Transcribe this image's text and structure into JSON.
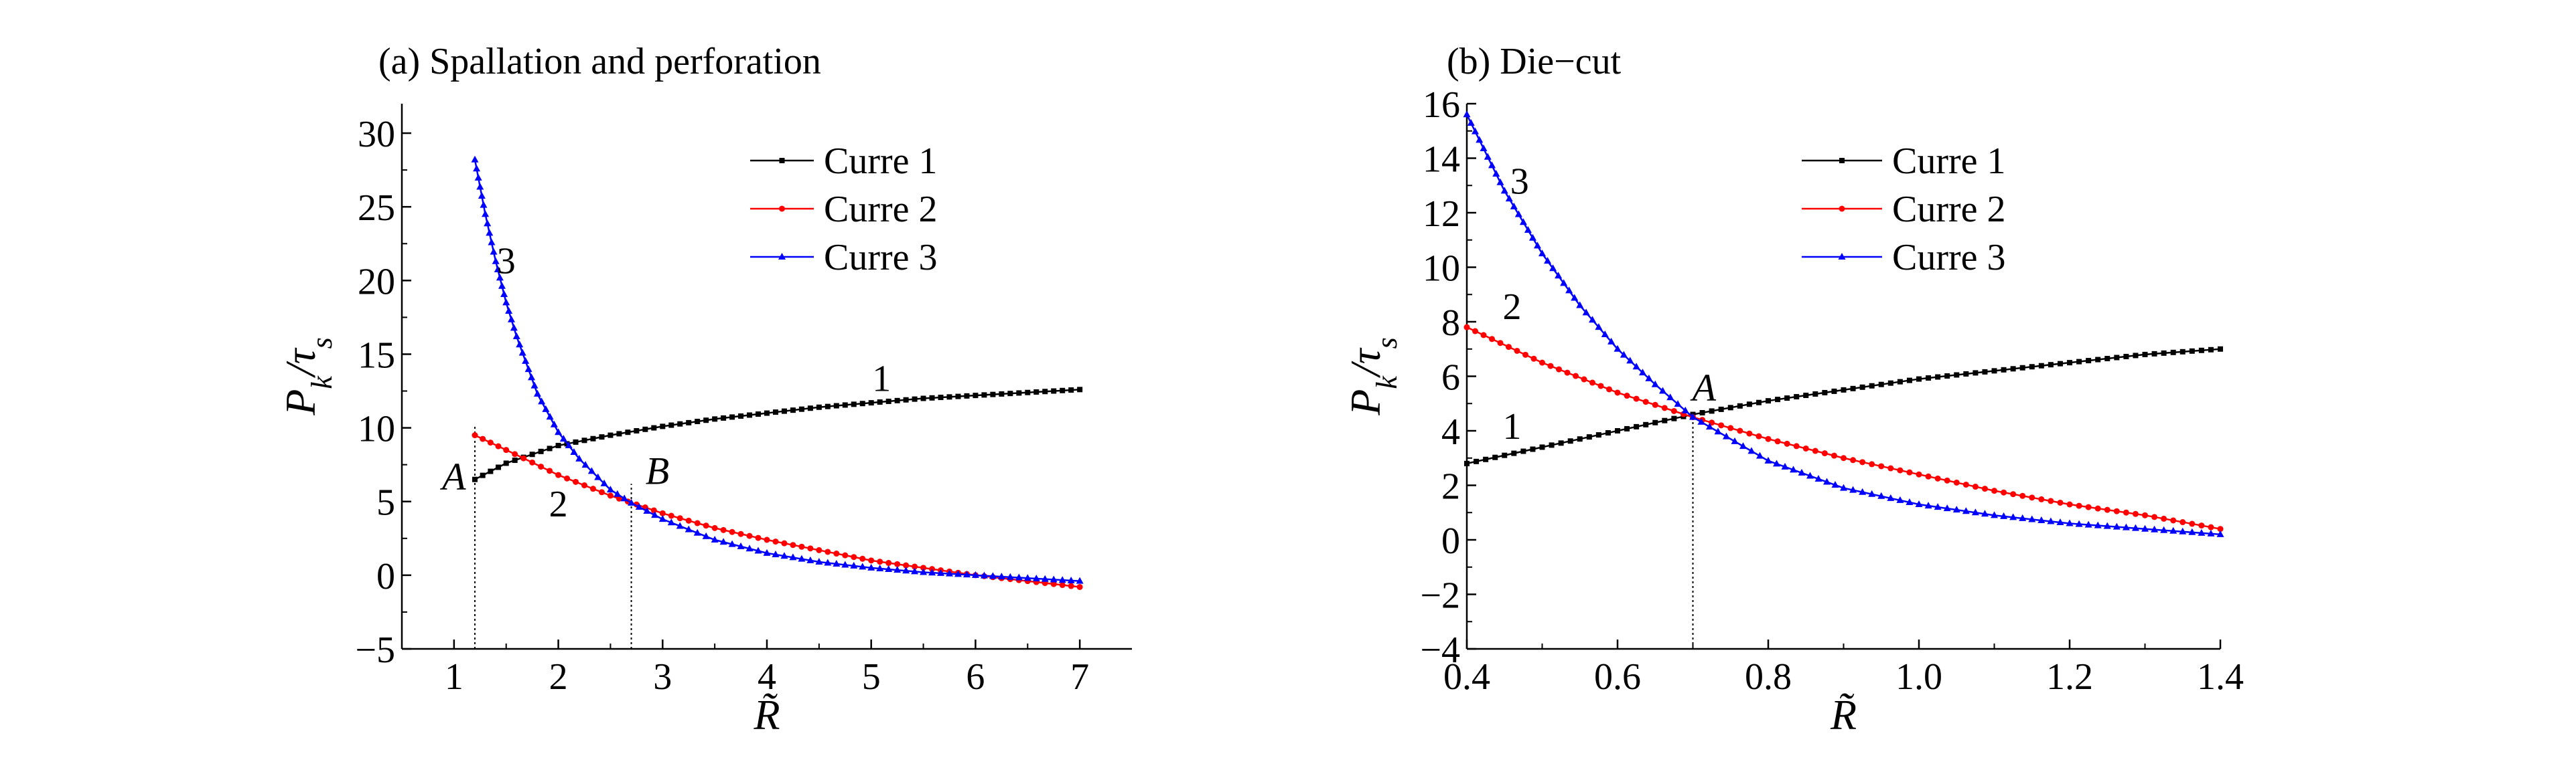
{
  "chart_data": [
    {
      "type": "line",
      "title": "(a) Spallation and perforation",
      "xlabel": "R̃",
      "ylabel_main": "P",
      "ylabel_sub1": "k",
      "ylabel_sep": "/τ",
      "ylabel_sub2": "s",
      "xlim": [
        0.5,
        7.5
      ],
      "ylim": [
        -5,
        32
      ],
      "xticks": [
        1,
        2,
        3,
        4,
        5,
        6,
        7
      ],
      "yticks": [
        -5,
        0,
        5,
        10,
        15,
        20,
        25,
        30
      ],
      "legend_position": "top-right",
      "series": [
        {
          "name": "Curre 1",
          "color": "#000000",
          "marker": "square",
          "x": [
            1.2,
            1.5,
            2.0,
            2.5,
            3.0,
            3.5,
            4.0,
            4.5,
            5.0,
            5.5,
            6.0,
            6.5,
            7.0
          ],
          "y": [
            6.5,
            7.6,
            8.8,
            9.5,
            10.1,
            10.6,
            11.0,
            11.4,
            11.7,
            12.0,
            12.2,
            12.4,
            12.6
          ]
        },
        {
          "name": "Curre 2",
          "color": "#ff0000",
          "marker": "circle",
          "x": [
            1.2,
            1.5,
            2.0,
            2.5,
            3.0,
            3.5,
            4.0,
            4.5,
            5.0,
            5.5,
            6.0,
            6.5,
            7.0
          ],
          "y": [
            9.5,
            8.5,
            6.8,
            5.4,
            4.2,
            3.2,
            2.4,
            1.7,
            1.0,
            0.5,
            0.0,
            -0.4,
            -0.8
          ]
        },
        {
          "name": "Curre 3",
          "color": "#0000ff",
          "marker": "triangle",
          "x": [
            1.2,
            1.3,
            1.4,
            1.5,
            1.6,
            1.8,
            2.0,
            2.2,
            2.5,
            2.7,
            3.0,
            3.5,
            4.0,
            4.5,
            5.0,
            5.5,
            6.0,
            6.5,
            7.0
          ],
          "y": [
            28.2,
            24.5,
            21.3,
            18.5,
            16.2,
            12.3,
            9.7,
            7.9,
            5.8,
            4.9,
            3.8,
            2.4,
            1.5,
            0.9,
            0.5,
            0.2,
            0.0,
            -0.2,
            -0.4
          ]
        }
      ],
      "annotations": [
        {
          "text": "1",
          "x": 5.1,
          "y": 12.5
        },
        {
          "text": "2",
          "x": 2.0,
          "y": 4.0
        },
        {
          "text": "3",
          "x": 1.5,
          "y": 20.5
        },
        {
          "text": "A",
          "x": 1.0,
          "y": 5.8
        },
        {
          "text": "B",
          "x": 2.95,
          "y": 6.2
        }
      ],
      "reference_lines": [
        {
          "x": 1.2,
          "y_from": -5,
          "y_to": 10.2
        },
        {
          "x": 2.7,
          "y_from": -5,
          "y_to": 6.2
        }
      ]
    },
    {
      "type": "line",
      "title": "(b) Die−cut",
      "xlabel": "R̃",
      "ylabel_main": "P",
      "ylabel_sub1": "k",
      "ylabel_sep": "/τ",
      "ylabel_sub2": "s",
      "xlim": [
        0.4,
        1.4
      ],
      "ylim": [
        -4,
        16
      ],
      "xticks": [
        "0.4",
        "0.6",
        "0.8",
        "1.0",
        "1.2",
        "1.4"
      ],
      "yticks": [
        -4,
        -2,
        0,
        2,
        4,
        6,
        8,
        10,
        12,
        14,
        16
      ],
      "legend_position": "top-right",
      "series": [
        {
          "name": "Curre 1",
          "color": "#000000",
          "marker": "square",
          "x": [
            0.4,
            0.5,
            0.6,
            0.7,
            0.8,
            0.9,
            1.0,
            1.1,
            1.2,
            1.3,
            1.4
          ],
          "y": [
            2.8,
            3.4,
            4.0,
            4.6,
            5.1,
            5.5,
            5.9,
            6.2,
            6.5,
            6.8,
            7.0
          ]
        },
        {
          "name": "Curre 2",
          "color": "#ff0000",
          "marker": "circle",
          "x": [
            0.4,
            0.5,
            0.6,
            0.7,
            0.8,
            0.9,
            1.0,
            1.1,
            1.2,
            1.3,
            1.4
          ],
          "y": [
            7.8,
            6.5,
            5.4,
            4.5,
            3.7,
            3.0,
            2.4,
            1.8,
            1.3,
            0.9,
            0.4
          ]
        },
        {
          "name": "Curre 3",
          "color": "#0000ff",
          "marker": "triangle",
          "x": [
            0.4,
            0.45,
            0.5,
            0.55,
            0.6,
            0.65,
            0.7,
            0.8,
            0.9,
            1.0,
            1.1,
            1.2,
            1.3,
            1.4
          ],
          "y": [
            15.6,
            12.8,
            10.5,
            8.6,
            7.0,
            5.7,
            4.5,
            2.9,
            1.9,
            1.3,
            0.9,
            0.6,
            0.4,
            0.2
          ]
        }
      ],
      "annotations": [
        {
          "text": "1",
          "x": 0.46,
          "y": 3.7
        },
        {
          "text": "2",
          "x": 0.46,
          "y": 8.1
        },
        {
          "text": "3",
          "x": 0.47,
          "y": 12.7
        },
        {
          "text": "A",
          "x": 0.715,
          "y": 5.1
        }
      ],
      "reference_lines": [
        {
          "x": 0.7,
          "y_from": -4,
          "y_to": 4.5
        }
      ]
    }
  ]
}
